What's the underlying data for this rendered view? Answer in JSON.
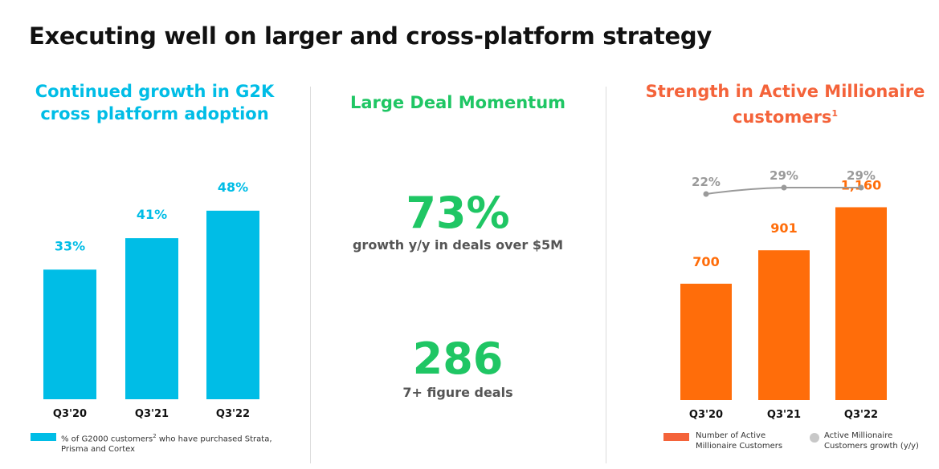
{
  "title": "Executing well on larger and cross-platform strategy",
  "colors": {
    "blue": "#00bde6",
    "green": "#1fc664",
    "orange": "#ff6d0a",
    "title_orange": "#f4633a",
    "gray_line": "#9a9a9a"
  },
  "left_panel": {
    "title_line1": "Continued growth in G2K",
    "title_line2": "cross platform adoption",
    "legend_part1": "% of G2000 customers",
    "legend_sup": "2",
    "legend_part2": " who have purchased Strata, Prisma and Cortex"
  },
  "middle_panel": {
    "title": "Large Deal Momentum",
    "stat1_value": "73%",
    "stat1_label": "growth y/y in deals over $5M",
    "stat2_value": "286",
    "stat2_label": "7+ figure deals"
  },
  "right_panel": {
    "title_line1": "Strength in Active Millionaire",
    "title_line2": "customers",
    "title_sup": "1",
    "legend_bar_line1": "Number of Active",
    "legend_bar_line2": "Millionaire Customers",
    "legend_line_line1": "Active Millionaire",
    "legend_line_line2": "Customers growth (y/y)"
  },
  "chart_data": [
    {
      "type": "bar",
      "categories": [
        "Q3'20",
        "Q3'21",
        "Q3'22"
      ],
      "values": [
        33,
        41,
        48
      ],
      "value_labels": [
        "33%",
        "41%",
        "48%"
      ],
      "ylim": [
        0,
        60
      ],
      "grid": false,
      "legend": "bottom-left"
    },
    {
      "type": "bar",
      "categories": [
        "Q3'20",
        "Q3'21",
        "Q3'22"
      ],
      "series": [
        {
          "values": [
            700,
            901,
            1160
          ],
          "value_labels": [
            "700",
            "901",
            "1,160"
          ]
        },
        {
          "type": "line",
          "values": [
            22,
            29,
            29
          ],
          "value_labels": [
            "22%",
            "29%",
            "29%"
          ]
        }
      ],
      "ylim": [
        0,
        1500
      ],
      "grid": false,
      "legend": "bottom"
    }
  ]
}
